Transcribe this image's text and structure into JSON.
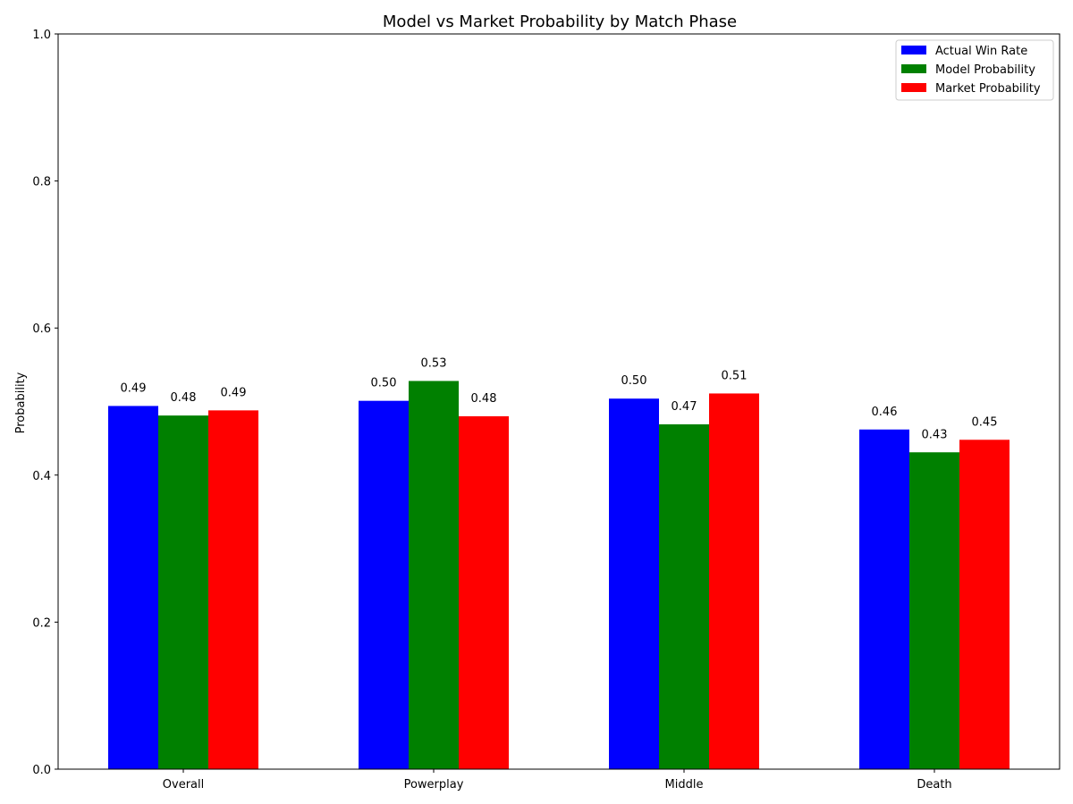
{
  "chart_data": {
    "type": "bar",
    "title": "Model vs Market Probability by Match Phase",
    "xlabel": "",
    "ylabel": "Probability",
    "ylim": [
      0,
      1.0
    ],
    "yticks": [
      "0.0",
      "0.2",
      "0.4",
      "0.6",
      "0.8",
      "1.0"
    ],
    "categories": [
      "Overall",
      "Powerplay",
      "Middle",
      "Death"
    ],
    "series": [
      {
        "name": "Actual Win Rate",
        "color": "#0000ff",
        "values": [
          0.494,
          0.501,
          0.504,
          0.462
        ],
        "labels": [
          "0.49",
          "0.50",
          "0.50",
          "0.46"
        ]
      },
      {
        "name": "Model Probability",
        "color": "#008000",
        "values": [
          0.481,
          0.528,
          0.469,
          0.431
        ],
        "labels": [
          "0.48",
          "0.53",
          "0.47",
          "0.43"
        ]
      },
      {
        "name": "Market Probability",
        "color": "#ff0000",
        "values": [
          0.488,
          0.48,
          0.511,
          0.448
        ],
        "labels": [
          "0.49",
          "0.48",
          "0.51",
          "0.45"
        ]
      }
    ],
    "legend": "top-right",
    "grid": false
  }
}
